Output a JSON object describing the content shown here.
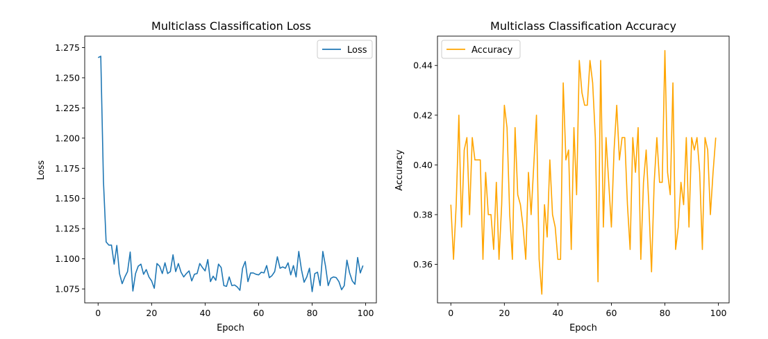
{
  "chart_data": [
    {
      "type": "line",
      "title": "Multiclass Classification Loss",
      "xlabel": "Epoch",
      "ylabel": "Loss",
      "xlim": [
        -5,
        104
      ],
      "ylim": [
        1.0635,
        1.2845
      ],
      "xticks": [
        0,
        20,
        40,
        60,
        80,
        100
      ],
      "yticks": [
        1.075,
        1.1,
        1.125,
        1.15,
        1.175,
        1.2,
        1.225,
        1.25,
        1.275
      ],
      "ytick_labels": [
        "1.075",
        "1.100",
        "1.125",
        "1.150",
        "1.175",
        "1.200",
        "1.225",
        "1.250",
        "1.275"
      ],
      "legend": "upper right",
      "grid": false,
      "series": [
        {
          "name": "Loss",
          "color": "#1f77b4",
          "x_start": 0,
          "values": [
            1.2667,
            1.2678,
            1.1644,
            1.114,
            1.1114,
            1.1114,
            1.0956,
            1.1111,
            1.0878,
            1.0794,
            1.085,
            1.0894,
            1.1056,
            1.0733,
            1.0878,
            1.0939,
            1.0956,
            1.0872,
            1.0911,
            1.085,
            1.0817,
            1.0756,
            1.0961,
            1.0939,
            1.0878,
            1.0967,
            1.0878,
            1.0894,
            1.1033,
            1.0894,
            1.0961,
            1.0889,
            1.085,
            1.0878,
            1.09,
            1.0817,
            1.0872,
            1.0878,
            1.0961,
            1.0928,
            1.09,
            1.0994,
            1.0811,
            1.0856,
            1.0822,
            1.0956,
            1.0928,
            1.0778,
            1.0772,
            1.085,
            1.0778,
            1.0783,
            1.0767,
            1.0739,
            1.0922,
            1.0978,
            1.0811,
            1.0883,
            1.0883,
            1.0872,
            1.0867,
            1.0889,
            1.0883,
            1.0944,
            1.0844,
            1.0861,
            1.0894,
            1.1017,
            1.0922,
            1.0933,
            1.0922,
            1.0967,
            1.0867,
            1.0944,
            1.085,
            1.1061,
            1.0911,
            1.0806,
            1.085,
            1.0922,
            1.0728,
            1.0878,
            1.0889,
            1.0778,
            1.1061,
            1.0939,
            1.0778,
            1.0839,
            1.085,
            1.0844,
            1.0811,
            1.0744,
            1.0778,
            1.0989,
            1.0883,
            1.0817,
            1.0789,
            1.1011,
            1.0883,
            1.0944
          ]
        }
      ]
    },
    {
      "type": "line",
      "title": "Multiclass Classification Accuracy",
      "xlabel": "Epoch",
      "ylabel": "Accuracy",
      "xlim": [
        -5,
        104
      ],
      "ylim": [
        0.3445,
        0.4518
      ],
      "xticks": [
        0,
        20,
        40,
        60,
        80,
        100
      ],
      "yticks": [
        0.36,
        0.38,
        0.4,
        0.42,
        0.44
      ],
      "ytick_labels": [
        "0.36",
        "0.38",
        "0.40",
        "0.42",
        "0.44"
      ],
      "legend": "upper left",
      "grid": false,
      "series": [
        {
          "name": "Accuracy",
          "color": "#ffa500",
          "x_start": 0,
          "values": [
            0.384,
            0.362,
            0.384,
            0.42,
            0.375,
            0.406,
            0.411,
            0.38,
            0.411,
            0.402,
            0.402,
            0.402,
            0.362,
            0.397,
            0.38,
            0.38,
            0.366,
            0.393,
            0.362,
            0.384,
            0.424,
            0.415,
            0.38,
            0.362,
            0.415,
            0.388,
            0.384,
            0.375,
            0.362,
            0.397,
            0.38,
            0.4,
            0.42,
            0.362,
            0.348,
            0.384,
            0.371,
            0.402,
            0.38,
            0.375,
            0.362,
            0.362,
            0.433,
            0.402,
            0.406,
            0.366,
            0.415,
            0.388,
            0.442,
            0.429,
            0.424,
            0.424,
            0.442,
            0.433,
            0.411,
            0.353,
            0.442,
            0.375,
            0.411,
            0.393,
            0.375,
            0.406,
            0.424,
            0.402,
            0.411,
            0.411,
            0.384,
            0.366,
            0.411,
            0.397,
            0.415,
            0.362,
            0.393,
            0.406,
            0.384,
            0.357,
            0.393,
            0.411,
            0.393,
            0.393,
            0.446,
            0.397,
            0.388,
            0.433,
            0.366,
            0.375,
            0.393,
            0.384,
            0.411,
            0.375,
            0.411,
            0.406,
            0.411,
            0.397,
            0.366,
            0.411,
            0.406,
            0.38,
            0.397,
            0.411
          ]
        }
      ]
    }
  ]
}
